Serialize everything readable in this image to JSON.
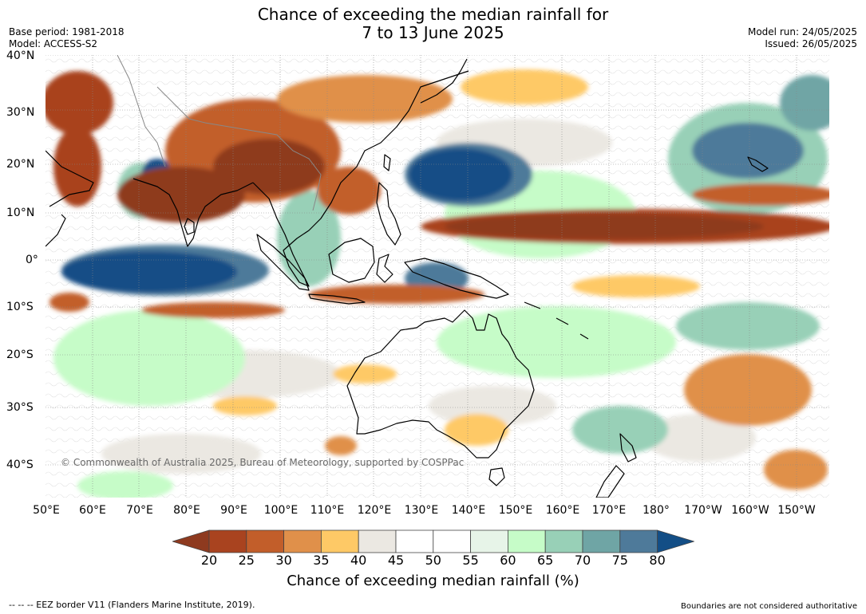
{
  "header": {
    "title_line1": "Chance of exceeding the median rainfall for",
    "title_line2": "7 to 13 June 2025",
    "base_period": "Base period: 1981-2018",
    "model": "Model: ACCESS-S2",
    "model_run": "Model run: 24/05/2025",
    "issued": "Issued: 26/05/2025"
  },
  "map": {
    "lat_labels": [
      "40°N",
      "30°N",
      "20°N",
      "10°N",
      "0°",
      "10°S",
      "20°S",
      "30°S",
      "40°S"
    ],
    "lon_labels": [
      "50°E",
      "60°E",
      "70°E",
      "80°E",
      "90°E",
      "100°E",
      "110°E",
      "120°E",
      "130°E",
      "140°E",
      "150°E",
      "160°E",
      "170°E",
      "180°",
      "170°W",
      "160°W",
      "150°W"
    ],
    "copyright": "© Commonwealth of Australia 2025, Bureau of Meteorology, supported by COSPPac"
  },
  "colorbar": {
    "ticks": [
      "20",
      "25",
      "30",
      "35",
      "40",
      "45",
      "50",
      "55",
      "60",
      "65",
      "70",
      "75",
      "80"
    ],
    "colors": [
      "#8e3a1f",
      "#a9431f",
      "#c25e2a",
      "#e0904a",
      "#fec966",
      "#ebe8e2",
      "#ffffff",
      "#ffffff",
      "#e7f4e8",
      "#c6fcc8",
      "#98d0b7",
      "#6fa5a5",
      "#4e7a9a",
      "#134e86"
    ],
    "label": "Chance of exceeding median rainfall (%)"
  },
  "footer": {
    "eez_note": "--  --  -- EEZ border V11 (Flanders Marine Institute, 2019).",
    "disclaimer": "Boundaries are not considered authoritative"
  }
}
